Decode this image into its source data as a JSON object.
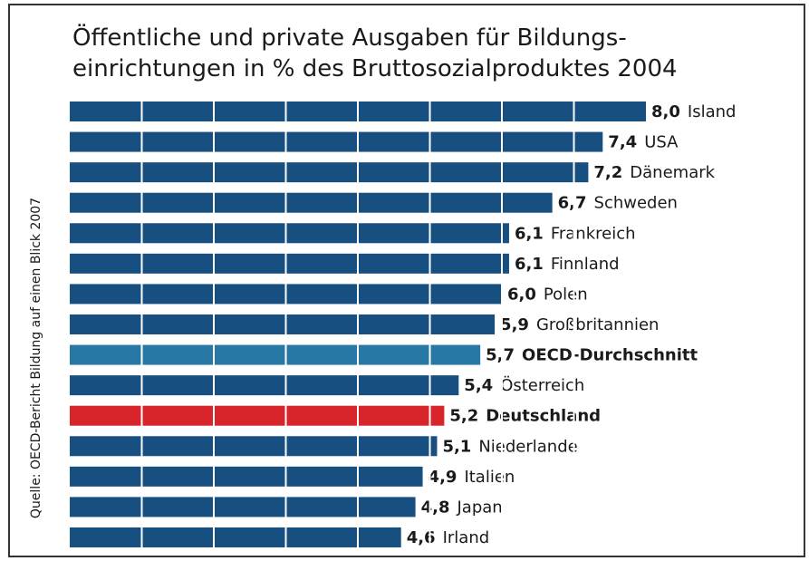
{
  "chart_data": {
    "type": "bar",
    "orientation": "horizontal",
    "title": [
      "Öffentliche und private Ausgaben für Bildungs-",
      "einrichtungen in % des Bruttosozialproduktes 2004"
    ],
    "source": "Quelle: OECD-Bericht Bildung auf einen Blick 2007",
    "categories": [
      "Island",
      "USA",
      "Dänemark",
      "Schweden",
      "Frankreich",
      "Finnland",
      "Polen",
      "Großbritannien",
      "OECD-Durchschnitt",
      "Österreich",
      "Deutschland",
      "Niederlande",
      "Italien",
      "Japan",
      "Irland"
    ],
    "values": [
      8.0,
      7.4,
      7.2,
      6.7,
      6.1,
      6.1,
      6.0,
      5.9,
      5.7,
      5.4,
      5.2,
      5.1,
      4.9,
      4.8,
      4.6
    ],
    "value_labels": [
      "8,0",
      "7,4",
      "7,2",
      "6,7",
      "6,1",
      "6,1",
      "6,0",
      "5,9",
      "5,7",
      "5,4",
      "5,2",
      "5,1",
      "4,9",
      "4,8",
      "4,6"
    ],
    "color": "#174f80",
    "colors": [
      "#174f80",
      "#174f80",
      "#174f80",
      "#174f80",
      "#174f80",
      "#174f80",
      "#174f80",
      "#174f80",
      "#2878a6",
      "#174f80",
      "#d7252b",
      "#174f80",
      "#174f80",
      "#174f80",
      "#174f80"
    ],
    "xlim": [
      0,
      8
    ],
    "xticks": [
      1,
      2,
      3,
      4,
      5,
      6,
      7
    ],
    "grid": true
  }
}
